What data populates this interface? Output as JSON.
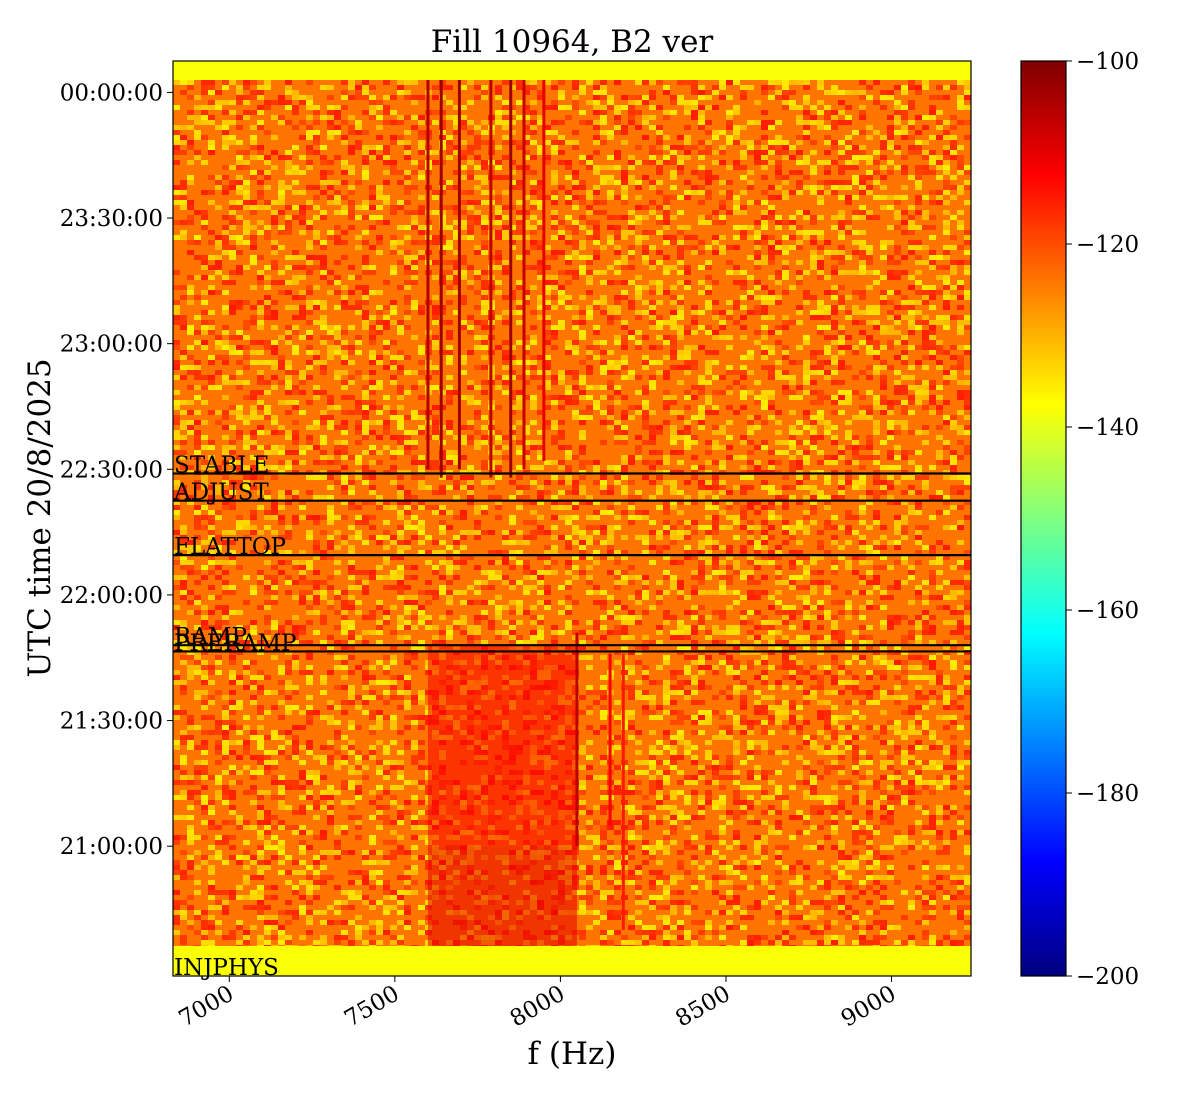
{
  "chart_data": {
    "type": "heatmap",
    "title": "Fill 10964, B2 ver",
    "xlabel": "f (Hz)",
    "ylabel": "UTC time 20/8/2025",
    "x_ticks": [
      7000,
      7500,
      8000,
      8500,
      9000
    ],
    "x_tick_labels": [
      "7000",
      "7500",
      "8000",
      "8500",
      "9000"
    ],
    "xlim": [
      6830,
      9240
    ],
    "y_tick_labels": [
      "00:00:00",
      "23:30:00",
      "23:00:00",
      "22:30:00",
      "22:00:00",
      "21:30:00",
      "21:00:00"
    ],
    "y_ticks_minutes_from_2000": [
      240,
      210,
      180,
      150,
      120,
      90,
      60
    ],
    "ylim_minutes_from_2000": [
      29,
      247.5
    ],
    "colorbar": {
      "colormap": "jet",
      "range": [
        -200,
        -100
      ],
      "ticks": [
        -100,
        -120,
        -140,
        -160,
        -180,
        -200
      ],
      "tick_labels": [
        "−100",
        "−120",
        "−140",
        "−160",
        "−180",
        "−200"
      ]
    },
    "background_level": -124,
    "edge_band_level": -138,
    "beam_modes": [
      {
        "label": "STABLE",
        "time": "22:29:00",
        "minutes_from_2000": 149
      },
      {
        "label": "ADJUST",
        "time": "22:22:30",
        "minutes_from_2000": 142.5
      },
      {
        "label": "FLATTOP",
        "time": "22:09:30",
        "minutes_from_2000": 129.5
      },
      {
        "label": "RAMP",
        "time": "21:48:00",
        "minutes_from_2000": 108
      },
      {
        "label": "PRERAMP",
        "time": "21:46:30",
        "minutes_from_2000": 106.5
      },
      {
        "label": "INJPHYS",
        "time": "20:29:00",
        "minutes_from_2000": 29
      }
    ],
    "spectral_lines": [
      {
        "f": 7600,
        "t_start_min": 150,
        "t_end_min": 245,
        "level": -105
      },
      {
        "f": 7640,
        "t_start_min": 148,
        "t_end_min": 245,
        "level": -103
      },
      {
        "f": 7695,
        "t_start_min": 150,
        "t_end_min": 245,
        "level": -103
      },
      {
        "f": 7790,
        "t_start_min": 148,
        "t_end_min": 245,
        "level": -106
      },
      {
        "f": 7850,
        "t_start_min": 148,
        "t_end_min": 245,
        "level": -103
      },
      {
        "f": 7890,
        "t_start_min": 150,
        "t_end_min": 245,
        "level": -107
      },
      {
        "f": 7950,
        "t_start_min": 152,
        "t_end_min": 245,
        "level": -110
      },
      {
        "f": 8050,
        "t_start_min": 60,
        "t_end_min": 111,
        "level": -106
      },
      {
        "f": 8150,
        "t_start_min": 65,
        "t_end_min": 106,
        "level": -112
      },
      {
        "f": 8190,
        "t_start_min": 40,
        "t_end_min": 106,
        "level": -115
      }
    ],
    "enhanced_regions": [
      {
        "f_range": [
          7600,
          8050
        ],
        "t_range_min": [
          60,
          108
        ],
        "level": -112
      },
      {
        "f_range": [
          7600,
          8050
        ],
        "t_range_min": [
          36,
          60
        ],
        "level": -110
      }
    ]
  }
}
